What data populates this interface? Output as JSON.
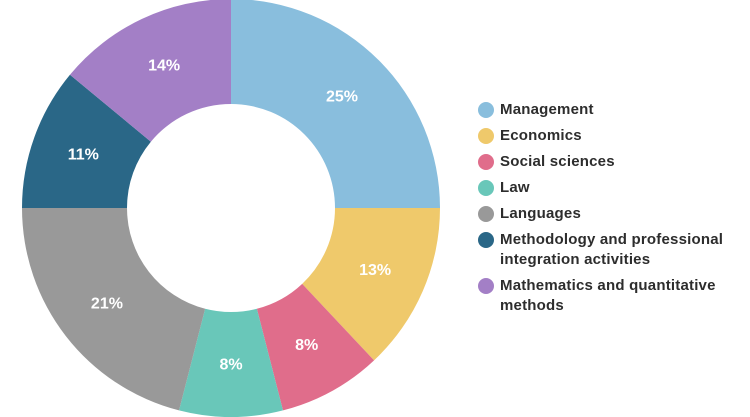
{
  "chart_data": {
    "type": "pie",
    "variant": "donut",
    "categories": [
      "Management",
      "Economics",
      "Social sciences",
      "Law",
      "Languages",
      "Methodology and professional integration activities",
      "Mathematics and quantitative methods"
    ],
    "values": [
      25,
      13,
      8,
      8,
      21,
      11,
      14
    ],
    "value_labels": [
      "25%",
      "13%",
      "8%",
      "8%",
      "21%",
      "11%",
      "14%"
    ],
    "colors": [
      "#89bedd",
      "#efc96b",
      "#e06d8b",
      "#69c7b9",
      "#999999",
      "#2a6787",
      "#a37fc6"
    ],
    "legend_placement": "right",
    "title": ""
  }
}
